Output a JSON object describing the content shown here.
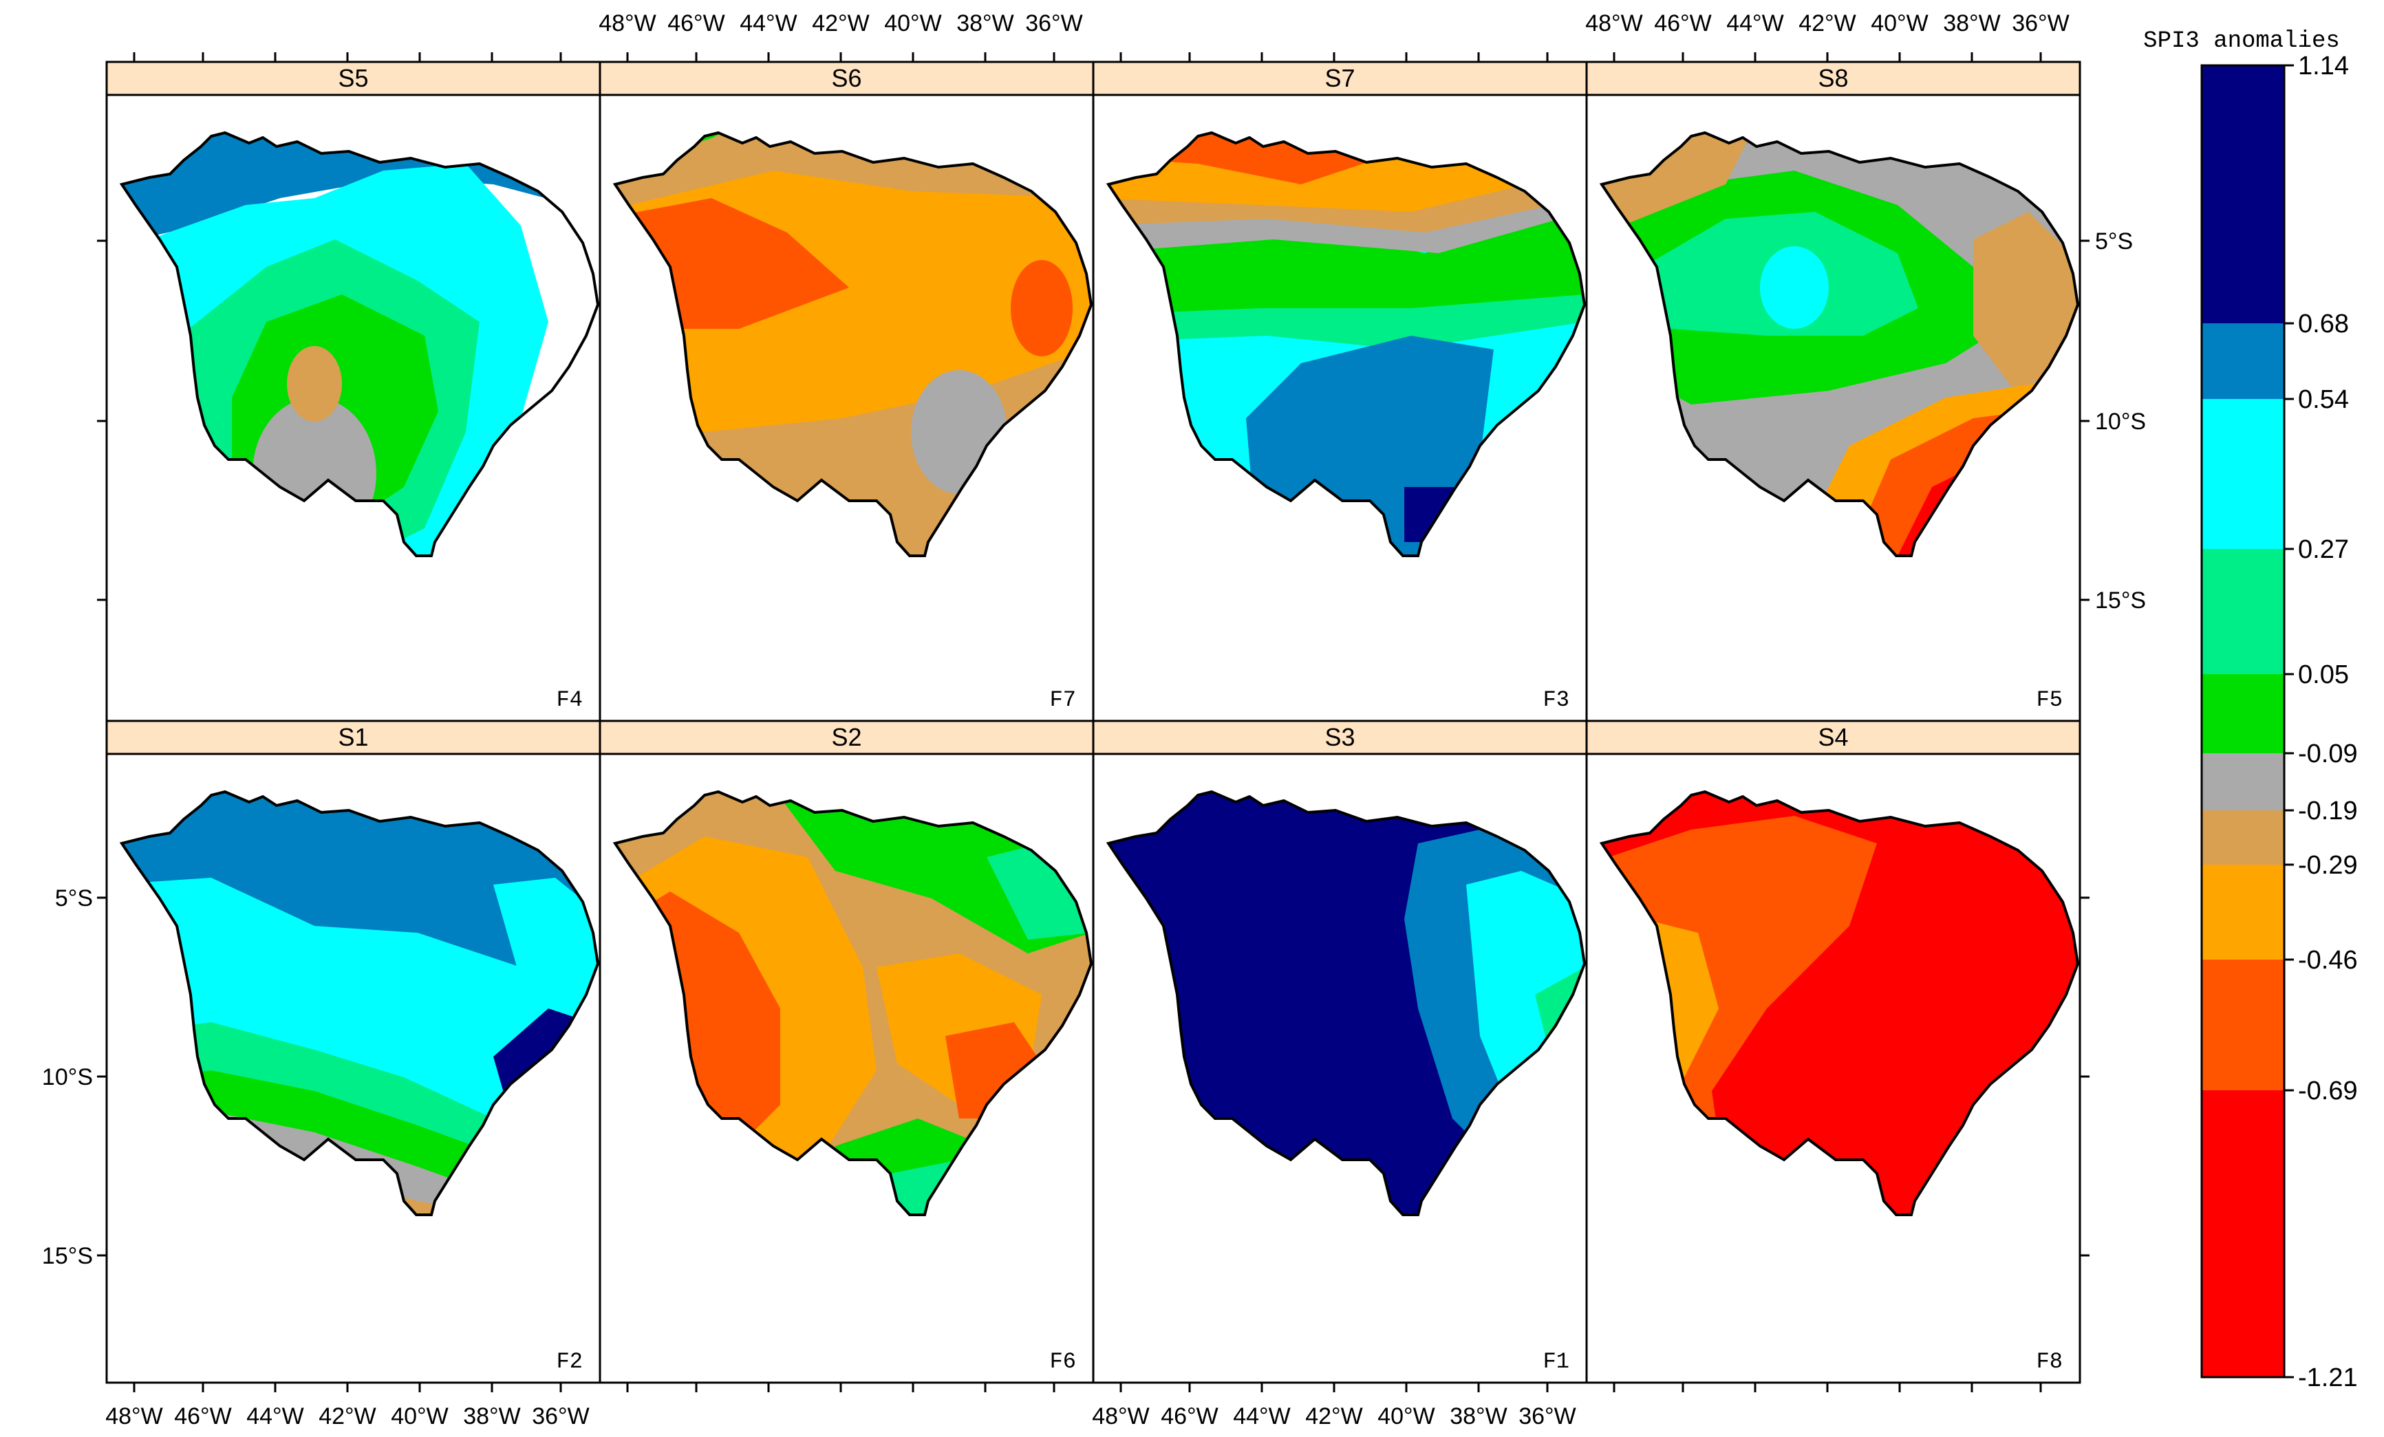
{
  "legend": {
    "title": "SPI3 anomalies",
    "breaks": [
      "1.14",
      "0.68",
      "0.54",
      "0.27",
      "0.05",
      "-0.09",
      "-0.19",
      "-0.29",
      "-0.46",
      "-0.69",
      "-1.21"
    ],
    "colors": [
      "#000080",
      "#0080c0",
      "#00ffff",
      "#00ee88",
      "#00dd00",
      "#aaaaaa",
      "#d8a050",
      "#ffa500",
      "#ff5500",
      "#ff0000"
    ]
  },
  "axes": {
    "lon_labels": [
      "48°W",
      "46°W",
      "44°W",
      "42°W",
      "40°W",
      "38°W",
      "36°W"
    ],
    "lat_labels": [
      "5°S",
      "10°S",
      "15°S"
    ]
  },
  "panels": [
    {
      "strip": "S5",
      "code": "F4",
      "classes": [
        2,
        3,
        4,
        5,
        6,
        7
      ]
    },
    {
      "strip": "S6",
      "code": "F7",
      "classes": [
        7,
        8,
        6,
        5,
        4
      ]
    },
    {
      "strip": "S7",
      "code": "F3",
      "classes": [
        9,
        8,
        7,
        5,
        4,
        3,
        2,
        1,
        0
      ]
    },
    {
      "strip": "S8",
      "code": "F5",
      "classes": [
        6,
        5,
        4,
        3,
        2,
        7,
        8,
        9
      ]
    },
    {
      "strip": "S1",
      "code": "F2",
      "classes": [
        1,
        2,
        3,
        4,
        5,
        6,
        7,
        0
      ]
    },
    {
      "strip": "S2",
      "code": "F6",
      "classes": [
        6,
        7,
        8,
        9,
        5,
        4,
        3
      ]
    },
    {
      "strip": "S3",
      "code": "F1",
      "classes": [
        0,
        1,
        2,
        3
      ]
    },
    {
      "strip": "S4",
      "code": "F8",
      "classes": [
        9,
        8,
        7,
        6
      ]
    }
  ]
}
